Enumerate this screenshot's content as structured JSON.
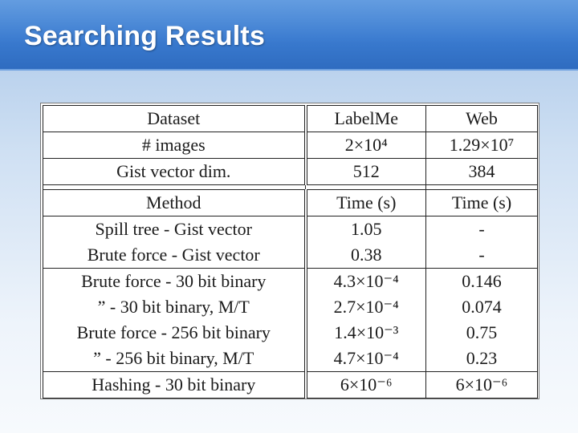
{
  "slide": {
    "title": "Searching Results"
  },
  "dataset_table": {
    "header": [
      "Dataset",
      "LabelMe",
      "Web"
    ],
    "rows": [
      [
        "# images",
        "2×10⁴",
        "1.29×10⁷"
      ],
      [
        "Gist vector dim.",
        "512",
        "384"
      ]
    ]
  },
  "method_table": {
    "header": [
      "Method",
      "Time (s)",
      "Time (s)"
    ],
    "rows": [
      [
        "Spill tree - Gist vector",
        "1.05",
        "-"
      ],
      [
        "Brute force - Gist vector",
        "0.38",
        "-"
      ],
      [
        "Brute force - 30 bit binary",
        "4.3×10⁻⁴",
        "0.146"
      ],
      [
        "” - 30 bit binary, M/T",
        "2.7×10⁻⁴",
        "0.074"
      ],
      [
        "Brute force - 256 bit binary",
        "1.4×10⁻³",
        "0.75"
      ],
      [
        "” - 256 bit binary, M/T",
        "4.7×10⁻⁴",
        "0.23"
      ],
      [
        "Hashing - 30 bit binary",
        "6×10⁻⁶",
        "6×10⁻⁶"
      ]
    ]
  }
}
